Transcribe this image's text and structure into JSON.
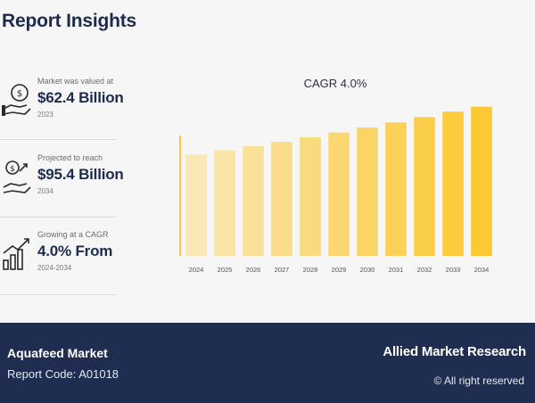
{
  "header": {
    "title": "Report Insights"
  },
  "stats": [
    {
      "icon": "money-hand-icon",
      "label": "Market was valued at",
      "value": "$62.4 Billion",
      "sub": "2023"
    },
    {
      "icon": "money-growth-icon",
      "label": "Projected to reach",
      "value": "$95.4 Billion",
      "sub": "2034"
    },
    {
      "icon": "bar-growth-icon",
      "label": "Growing at a CAGR",
      "value": "4.0% From",
      "sub": "2024-2034"
    }
  ],
  "chart_data": {
    "type": "bar",
    "title": "CAGR 4.0%",
    "xlabel": "",
    "ylabel": "",
    "categories": [
      "2024",
      "2025",
      "2026",
      "2027",
      "2028",
      "2029",
      "2030",
      "2031",
      "2032",
      "2033",
      "2034"
    ],
    "values": [
      64.9,
      67.5,
      70.2,
      73.0,
      75.9,
      78.9,
      82.1,
      85.4,
      88.8,
      92.3,
      95.4
    ],
    "ylim": [
      0,
      100
    ],
    "colors": [
      "#f9e7b4",
      "#f9e4a6",
      "#f9e199",
      "#f9dd8b",
      "#f9da7e",
      "#fad771",
      "#fad464",
      "#fbd157",
      "#fbce4a",
      "#fccb3e",
      "#fcc934"
    ],
    "axis_color": "#f4c84a",
    "grid": false,
    "legend": "none"
  },
  "footer": {
    "market": "Aquafeed Market",
    "code": "Report Code: A01018",
    "brand": "Allied Market Research",
    "rights": "© All right reserved"
  }
}
